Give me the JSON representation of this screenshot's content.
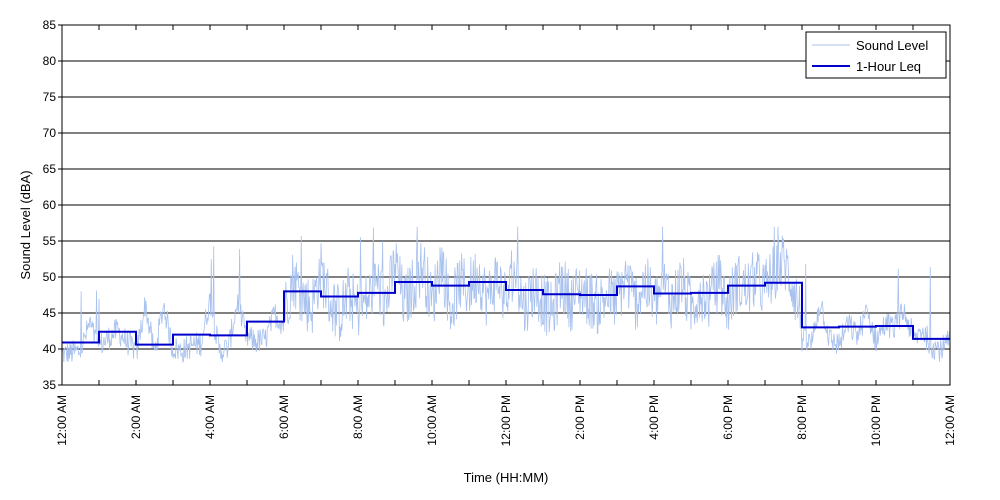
{
  "chart_data": {
    "type": "line",
    "title": "",
    "xlabel": "Time (HH:MM)",
    "ylabel": "Sound Level (dBA)",
    "ylim": [
      35,
      85
    ],
    "yticks": [
      35,
      40,
      45,
      50,
      55,
      60,
      65,
      70,
      75,
      80,
      85
    ],
    "xlim_hours": [
      0,
      24
    ],
    "xtick_labels": [
      "12:00 AM",
      "2:00 AM",
      "4:00 AM",
      "6:00 AM",
      "8:00 AM",
      "10:00 AM",
      "12:00 PM",
      "2:00 PM",
      "4:00 PM",
      "6:00 PM",
      "8:00 PM",
      "10:00 PM",
      "12:00 AM"
    ],
    "grid": "horizontal",
    "legend_position": "top-right",
    "series": [
      {
        "name": "Sound Level",
        "color": "#a8c1ee",
        "style": "thin-line",
        "x_hours": [
          0,
          0.25,
          0.5,
          0.75,
          1.0,
          1.25,
          1.5,
          1.75,
          2.0,
          2.25,
          2.5,
          2.75,
          3.0,
          3.25,
          3.5,
          3.75,
          4.0,
          4.25,
          4.5,
          4.75,
          5.0,
          5.25,
          5.5,
          5.75,
          6.0,
          6.25,
          6.5,
          6.75,
          7.0,
          7.25,
          7.5,
          7.75,
          8.0,
          8.25,
          8.5,
          8.75,
          9.0,
          9.25,
          9.5,
          9.75,
          10.0,
          10.25,
          10.5,
          10.75,
          11.0,
          11.25,
          11.5,
          11.75,
          12.0,
          12.25,
          12.5,
          12.75,
          13.0,
          13.25,
          13.5,
          13.75,
          14.0,
          14.25,
          14.5,
          14.75,
          15.0,
          15.25,
          15.5,
          15.75,
          16.0,
          16.25,
          16.5,
          16.75,
          17.0,
          17.25,
          17.5,
          17.75,
          18.0,
          18.25,
          18.5,
          18.75,
          19.0,
          19.25,
          19.5,
          19.75,
          20.0,
          20.25,
          20.5,
          20.75,
          21.0,
          21.25,
          21.5,
          21.75,
          22.0,
          22.25,
          22.5,
          22.75,
          23.0,
          23.25,
          23.5,
          23.75,
          24.0
        ],
        "values": [
          39,
          39.5,
          40,
          47,
          40,
          42,
          44,
          41,
          39,
          52,
          39.5,
          52,
          40,
          39,
          40.5,
          41,
          52,
          39,
          40,
          52,
          41,
          40,
          40.5,
          47,
          44,
          53,
          48,
          45,
          55,
          47,
          44,
          49,
          45,
          47,
          52,
          46,
          56,
          45,
          50,
          55,
          45,
          57,
          44,
          51,
          49,
          53,
          46,
          52,
          46,
          54,
          45,
          50,
          47,
          44,
          52,
          47,
          50,
          48,
          46,
          49,
          47,
          52,
          46,
          51,
          46,
          51,
          47,
          52,
          45,
          50,
          47,
          52,
          45,
          51,
          49,
          52,
          49,
          53,
          56,
          50,
          41,
          40,
          51,
          41,
          40,
          45,
          42,
          48,
          41,
          45,
          44,
          48,
          42,
          45,
          41,
          40,
          42
        ]
      },
      {
        "name": "1-Hour Leq",
        "color": "#0000cc",
        "style": "step",
        "hourly_values": [
          40.9,
          42.4,
          40.6,
          42.0,
          41.9,
          43.8,
          48.0,
          47.3,
          47.8,
          49.3,
          48.8,
          49.3,
          48.2,
          47.6,
          47.5,
          48.7,
          47.7,
          47.8,
          48.8,
          49.2,
          43.0,
          43.1,
          43.2,
          41.4
        ]
      }
    ]
  }
}
